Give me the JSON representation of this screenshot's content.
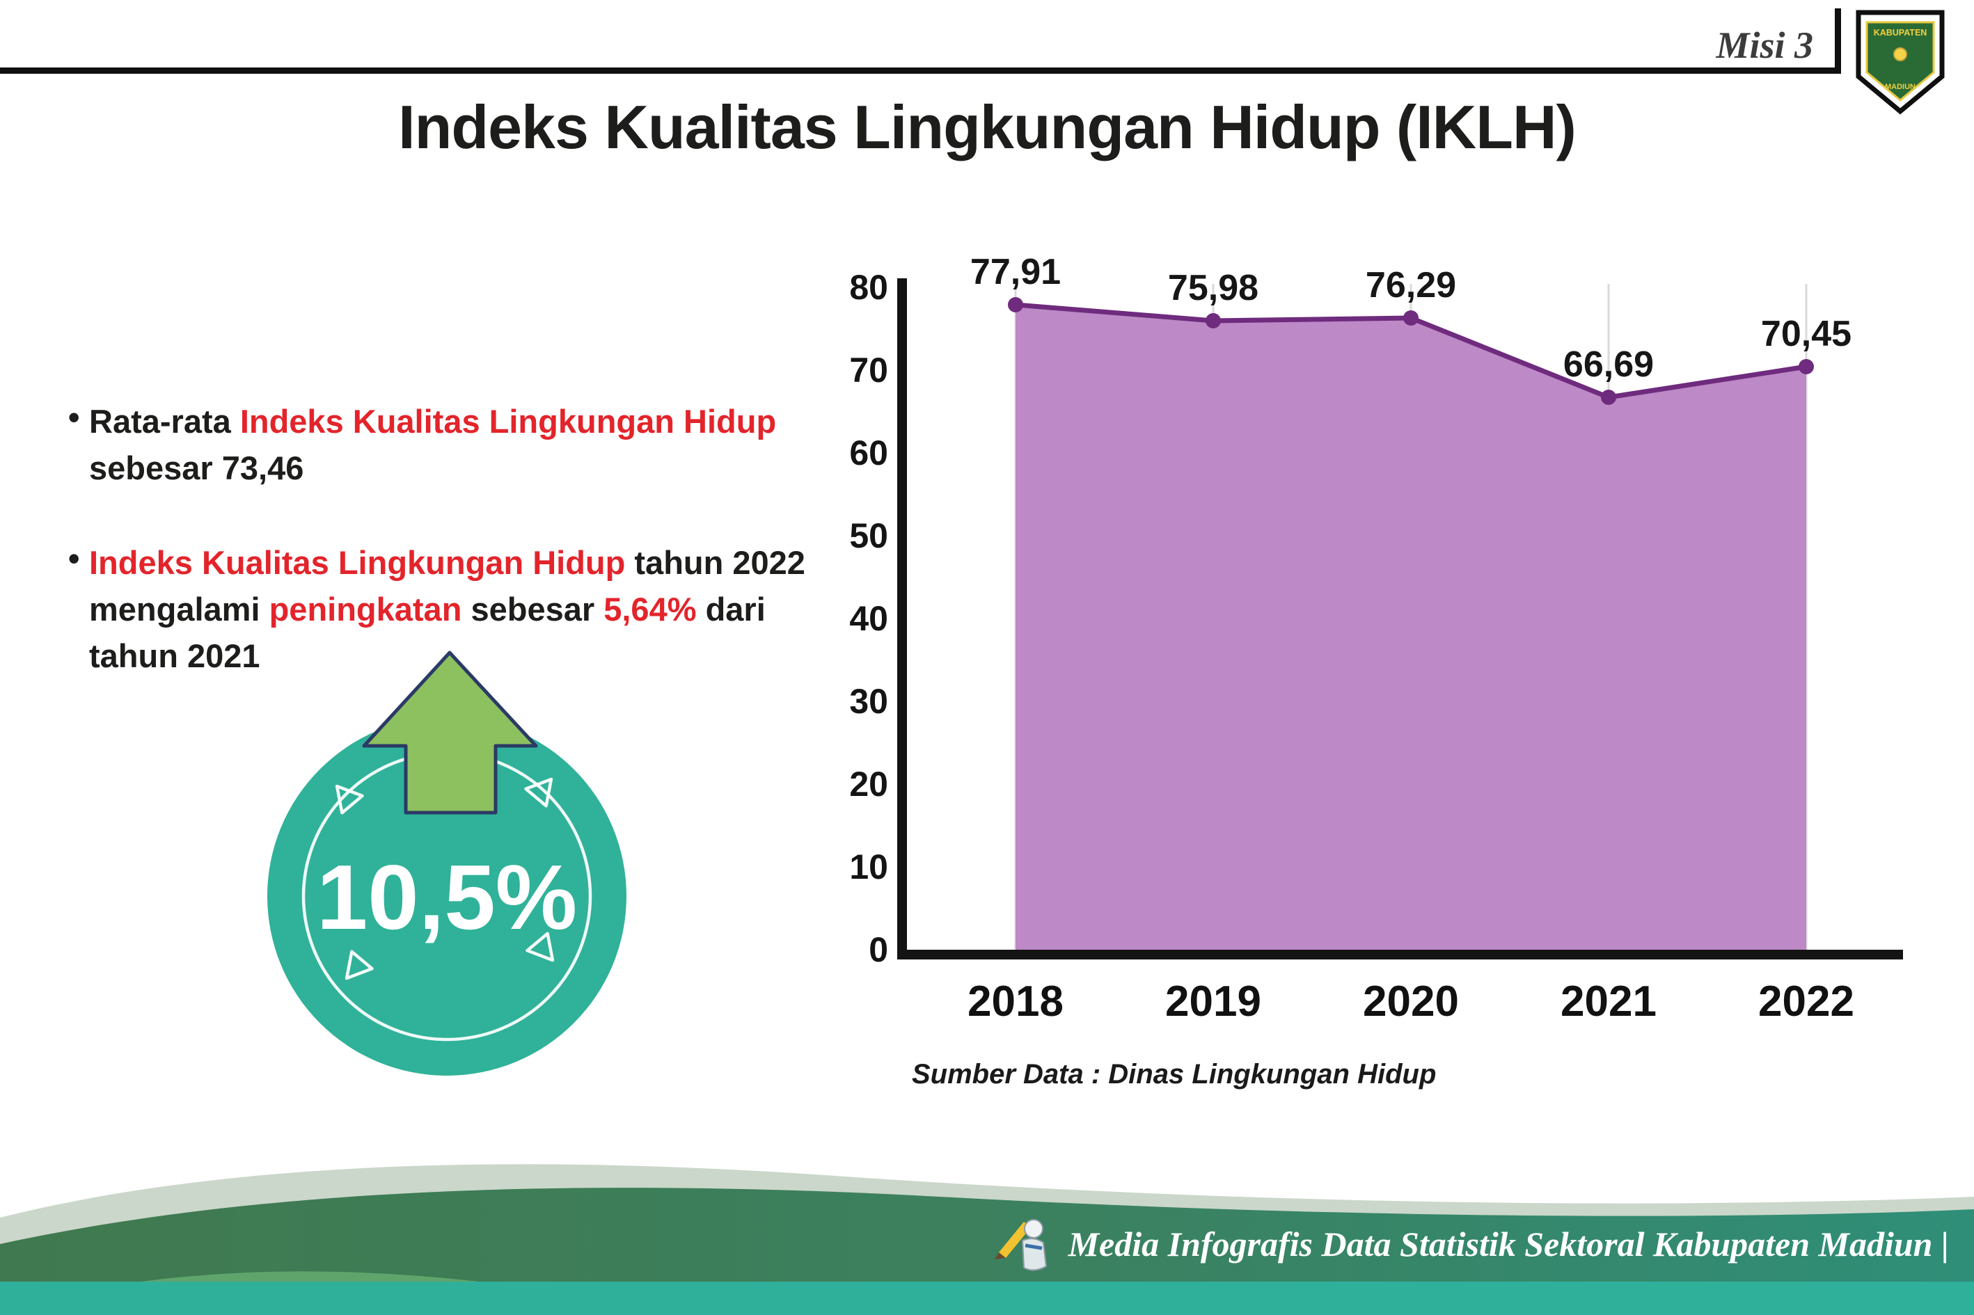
{
  "header": {
    "misi_label": "Misi 3",
    "title": "Indeks Kualitas Lingkungan Hidup (IKLH)",
    "logo_top_text": "KABUPATEN",
    "logo_bottom_text": "MADIUN"
  },
  "colors": {
    "red": "#e3242b",
    "teal": "#2fb299",
    "arrow_green": "#8dc05f",
    "ink": "#1d1d1b"
  },
  "bullets": {
    "dot": "•",
    "b1": {
      "l1d": "Rata-rata ",
      "l1r": "Indeks Kualitas Lingkungan Hidup",
      "l2d": "sebesar 73,46"
    },
    "b2": {
      "l1r": "Indeks Kualitas Lingkungan Hidup",
      "l1d": " tahun 2022",
      "l2d1": "mengalami ",
      "l2r1": "peningkatan",
      "l2d2": " sebesar ",
      "l2r2": "5,64%",
      "l2d3": " dari",
      "l3d": "tahun 2021"
    }
  },
  "badge": {
    "value": "10,5%"
  },
  "chart_data": {
    "type": "area",
    "title": "",
    "categories": [
      "2018",
      "2019",
      "2020",
      "2021",
      "2022"
    ],
    "values": [
      77.91,
      75.98,
      76.29,
      66.69,
      70.45
    ],
    "value_labels": [
      "77,91",
      "75,98",
      "76,29",
      "66,69",
      "70,45"
    ],
    "ylim": [
      0,
      80
    ],
    "yticks": [
      0,
      10,
      20,
      30,
      40,
      50,
      60,
      70,
      80
    ],
    "grid": "vertical",
    "legend": "none",
    "fill_color": "#bd89c6",
    "line_color": "#6f2b7e",
    "source": "Sumber Data : Dinas Lingkungan Hidup"
  },
  "footer": {
    "credit": "Media Infografis Data Statistik Sektoral Kabupaten Madiun |"
  }
}
